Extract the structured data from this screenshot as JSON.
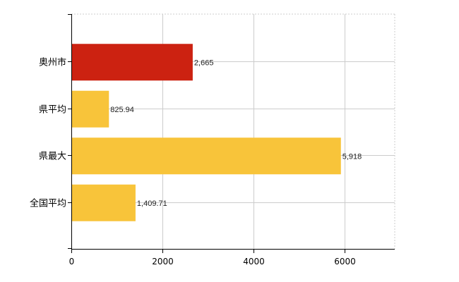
{
  "chart_data": {
    "type": "bar",
    "orientation": "horizontal",
    "categories": [
      "奥州市",
      "県平均",
      "県最大",
      "全国平均"
    ],
    "values": [
      2665,
      825.94,
      5918,
      1409.71
    ],
    "value_labels": [
      "2,665",
      "825.94",
      "5,918",
      "1,409.71"
    ],
    "bar_colors": [
      "#cc2211",
      "#f8c43a",
      "#f8c43a",
      "#f8c43a"
    ],
    "xlim": [
      0,
      7100
    ],
    "xticks": [
      0,
      2000,
      4000,
      6000
    ],
    "xtick_labels": [
      "0",
      "2000",
      "4000",
      "6000"
    ],
    "grid": true,
    "title": "",
    "xlabel": "",
    "ylabel": ""
  }
}
